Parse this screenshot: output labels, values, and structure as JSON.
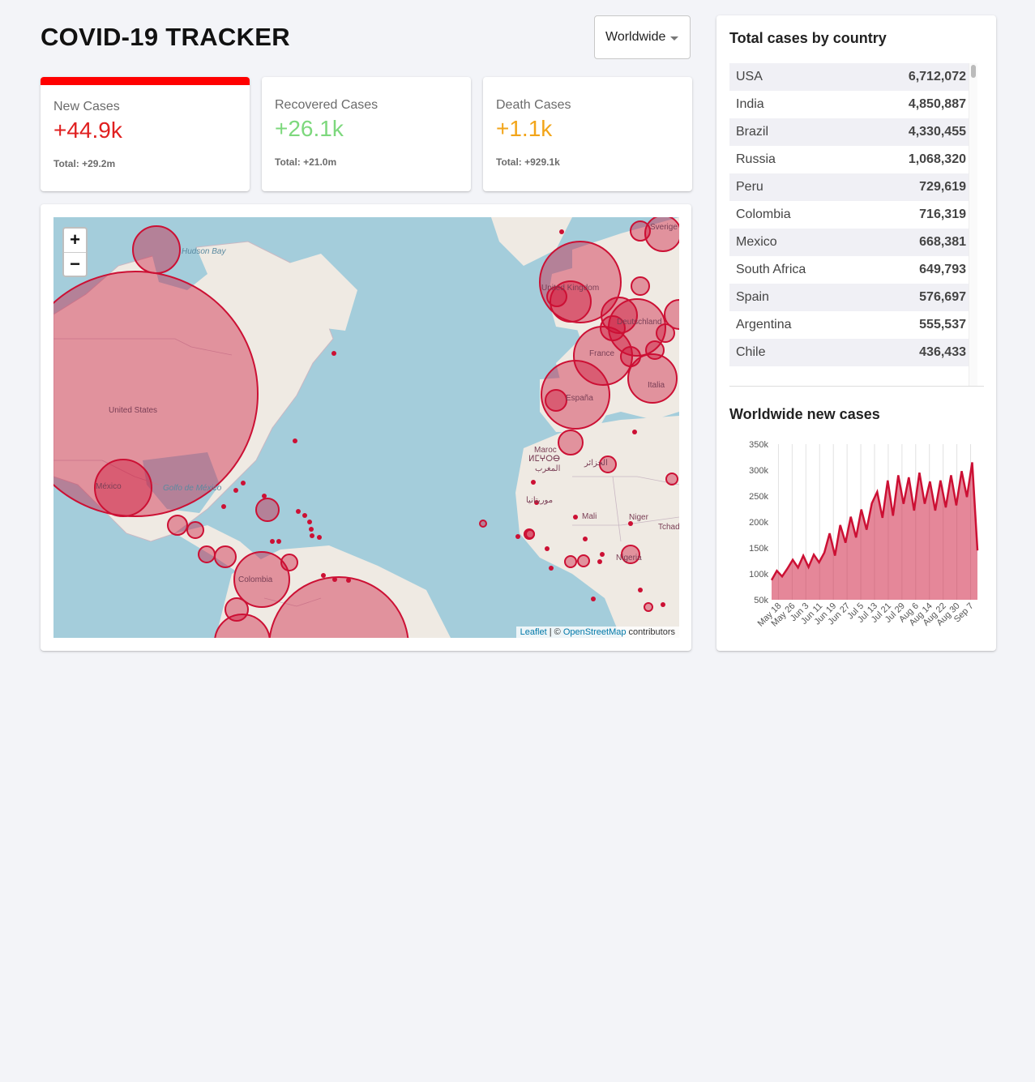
{
  "header": {
    "title": "COVID-19 TRACKER",
    "country_select": "Worldwide"
  },
  "stats": [
    {
      "label": "New Cases",
      "value": "+44.9k",
      "total": "Total: +29.2m",
      "color": "#e02020",
      "active": true
    },
    {
      "label": "Recovered Cases",
      "value": "+26.1k",
      "total": "Total: +21.0m",
      "color": "#7dd87d",
      "active": false
    },
    {
      "label": "Death Cases",
      "value": "+1.1k",
      "total": "Total: +929.1k",
      "color": "#f2a51a",
      "active": false
    }
  ],
  "map": {
    "zoom_in": "+",
    "zoom_out": "−",
    "attribution": {
      "leaflet": "Leaflet",
      "sep": " | © ",
      "osm": "OpenStreetMap",
      "suffix": " contributors"
    },
    "labels": [
      "United States",
      "Hudson Bay",
      "México",
      "Golfo de México",
      "Colombia",
      "United Kingdom",
      "Deutschland",
      "France",
      "España",
      "Italia",
      "Sverige",
      "Maroc",
      "ⵍⵎⵖⵔⴱ",
      "المغرب",
      "الجزائر",
      "موريتانيا",
      "Mali",
      "Niger",
      "Tchad",
      "Nigeria"
    ],
    "circle_color": "#cc1034"
  },
  "sidebar": {
    "table_title": "Total cases by country",
    "countries": [
      {
        "name": "USA",
        "cases": "6,712,072"
      },
      {
        "name": "India",
        "cases": "4,850,887"
      },
      {
        "name": "Brazil",
        "cases": "4,330,455"
      },
      {
        "name": "Russia",
        "cases": "1,068,320"
      },
      {
        "name": "Peru",
        "cases": "729,619"
      },
      {
        "name": "Colombia",
        "cases": "716,319"
      },
      {
        "name": "Mexico",
        "cases": "668,381"
      },
      {
        "name": "South Africa",
        "cases": "649,793"
      },
      {
        "name": "Spain",
        "cases": "576,697"
      },
      {
        "name": "Argentina",
        "cases": "555,537"
      },
      {
        "name": "Chile",
        "cases": "436,433"
      }
    ],
    "chart_title": "Worldwide new cases"
  },
  "chart_data": {
    "type": "area",
    "title": "Worldwide new cases",
    "xlabel": "",
    "ylabel": "",
    "ylim": [
      50000,
      350000
    ],
    "yticks": [
      "50k",
      "100k",
      "150k",
      "200k",
      "250k",
      "300k",
      "350k"
    ],
    "xticks": [
      "May 18",
      "May 26",
      "Jun 3",
      "Jun 11",
      "Jun 19",
      "Jun 27",
      "Jul 5",
      "Jul 13",
      "Jul 21",
      "Jul 29",
      "Aug 6",
      "Aug 14",
      "Aug 22",
      "Aug 30",
      "Sep 7"
    ],
    "weekly_points": [
      {
        "x": "May 18",
        "y": 88000
      },
      {
        "x": "May 21",
        "y": 106000
      },
      {
        "x": "May 24",
        "y": 95000
      },
      {
        "x": "May 27",
        "y": 110000
      },
      {
        "x": "May 30",
        "y": 127000
      },
      {
        "x": "Jun 2",
        "y": 112000
      },
      {
        "x": "Jun 5",
        "y": 135000
      },
      {
        "x": "Jun 8",
        "y": 113000
      },
      {
        "x": "Jun 11",
        "y": 137000
      },
      {
        "x": "Jun 14",
        "y": 122000
      },
      {
        "x": "Jun 17",
        "y": 141000
      },
      {
        "x": "Jun 20",
        "y": 178000
      },
      {
        "x": "Jun 23",
        "y": 135000
      },
      {
        "x": "Jun 26",
        "y": 194000
      },
      {
        "x": "Jun 29",
        "y": 160000
      },
      {
        "x": "Jul 2",
        "y": 210000
      },
      {
        "x": "Jul 5",
        "y": 170000
      },
      {
        "x": "Jul 8",
        "y": 224000
      },
      {
        "x": "Jul 11",
        "y": 185000
      },
      {
        "x": "Jul 14",
        "y": 236000
      },
      {
        "x": "Jul 17",
        "y": 258000
      },
      {
        "x": "Jul 20",
        "y": 208000
      },
      {
        "x": "Jul 23",
        "y": 280000
      },
      {
        "x": "Jul 26",
        "y": 212000
      },
      {
        "x": "Jul 29",
        "y": 290000
      },
      {
        "x": "Aug 1",
        "y": 235000
      },
      {
        "x": "Aug 4",
        "y": 286000
      },
      {
        "x": "Aug 7",
        "y": 222000
      },
      {
        "x": "Aug 10",
        "y": 295000
      },
      {
        "x": "Aug 13",
        "y": 235000
      },
      {
        "x": "Aug 16",
        "y": 278000
      },
      {
        "x": "Aug 19",
        "y": 222000
      },
      {
        "x": "Aug 22",
        "y": 280000
      },
      {
        "x": "Aug 25",
        "y": 228000
      },
      {
        "x": "Aug 28",
        "y": 290000
      },
      {
        "x": "Aug 31",
        "y": 232000
      },
      {
        "x": "Sep 3",
        "y": 298000
      },
      {
        "x": "Sep 6",
        "y": 248000
      },
      {
        "x": "Sep 9",
        "y": 315000
      },
      {
        "x": "Sep 12",
        "y": 145000
      }
    ],
    "color": "#cc1034"
  }
}
